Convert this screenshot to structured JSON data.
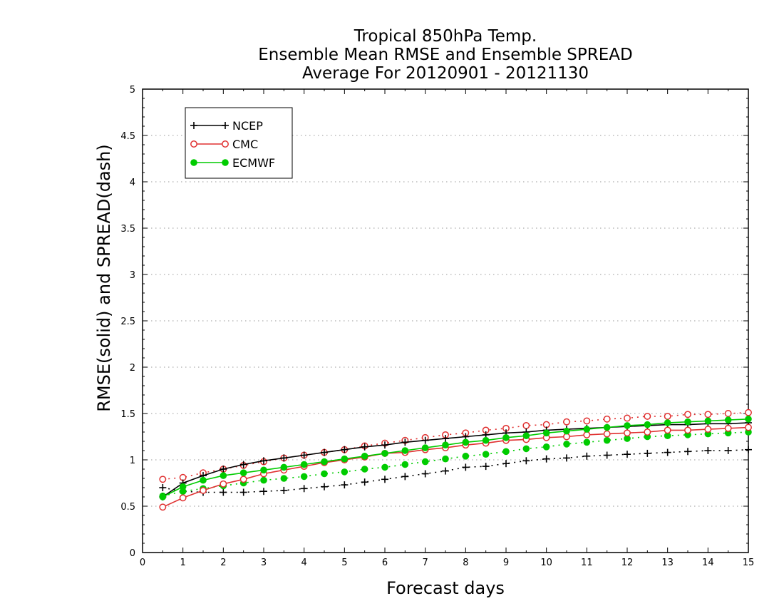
{
  "chart_data": {
    "type": "line",
    "title": [
      "Tropical 850hPa Temp.",
      "Ensemble Mean RMSE and Ensemble SPREAD",
      "Average For 20120901 - 20121130"
    ],
    "xlabel": "Forecast days",
    "ylabel": "RMSE(solid) and SPREAD(dash)",
    "xlim": [
      0,
      15
    ],
    "ylim": [
      0,
      5
    ],
    "xticks": [
      0,
      1,
      2,
      3,
      4,
      5,
      6,
      7,
      8,
      9,
      10,
      11,
      12,
      13,
      14,
      15
    ],
    "yticks": [
      0,
      0.5,
      1,
      1.5,
      2,
      2.5,
      3,
      3.5,
      4,
      4.5,
      5
    ],
    "ytick_labels": [
      "0",
      "0.5",
      "1",
      "1.5",
      "2",
      "2.5",
      "3",
      "3.5",
      "4",
      "4.5",
      "5"
    ],
    "grid": "horizontal dotted",
    "legend_position": "top-left",
    "x": [
      0.5,
      1,
      1.5,
      2,
      2.5,
      3,
      3.5,
      4,
      4.5,
      5,
      5.5,
      6,
      6.5,
      7,
      7.5,
      8,
      8.5,
      9,
      9.5,
      10,
      10.5,
      11,
      11.5,
      12,
      12.5,
      13,
      13.5,
      14,
      14.5,
      15
    ],
    "series": [
      {
        "name": "NCEP",
        "metric": "RMSE",
        "color": "#000000",
        "marker": "plus",
        "values": [
          0.6,
          0.75,
          0.83,
          0.9,
          0.95,
          0.99,
          1.02,
          1.05,
          1.08,
          1.11,
          1.14,
          1.16,
          1.19,
          1.21,
          1.23,
          1.25,
          1.27,
          1.29,
          1.3,
          1.32,
          1.33,
          1.34,
          1.35,
          1.36,
          1.37,
          1.38,
          1.38,
          1.39,
          1.39,
          1.4
        ]
      },
      {
        "name": "NCEP",
        "metric": "SPREAD",
        "color": "#000000",
        "marker": "plus",
        "values": [
          0.7,
          0.66,
          0.65,
          0.65,
          0.65,
          0.66,
          0.67,
          0.69,
          0.71,
          0.73,
          0.76,
          0.79,
          0.82,
          0.85,
          0.88,
          0.92,
          0.93,
          0.96,
          0.99,
          1.01,
          1.02,
          1.04,
          1.05,
          1.06,
          1.07,
          1.08,
          1.09,
          1.1,
          1.1,
          1.11
        ]
      },
      {
        "name": "CMC",
        "metric": "RMSE",
        "color": "#e03030",
        "marker": "circle-open",
        "values": [
          0.49,
          0.59,
          0.67,
          0.74,
          0.79,
          0.85,
          0.89,
          0.93,
          0.97,
          1.0,
          1.03,
          1.07,
          1.08,
          1.11,
          1.13,
          1.16,
          1.18,
          1.21,
          1.22,
          1.24,
          1.25,
          1.27,
          1.28,
          1.29,
          1.3,
          1.32,
          1.32,
          1.33,
          1.34,
          1.35
        ]
      },
      {
        "name": "CMC",
        "metric": "SPREAD",
        "color": "#e03030",
        "marker": "circle-open",
        "values": [
          0.79,
          0.81,
          0.86,
          0.9,
          0.94,
          0.98,
          1.02,
          1.05,
          1.08,
          1.11,
          1.15,
          1.18,
          1.21,
          1.24,
          1.27,
          1.29,
          1.32,
          1.34,
          1.37,
          1.38,
          1.41,
          1.42,
          1.44,
          1.45,
          1.47,
          1.47,
          1.49,
          1.49,
          1.5,
          1.51
        ]
      },
      {
        "name": "ECMWF",
        "metric": "RMSE",
        "color": "#00cc00",
        "marker": "circle-filled",
        "values": [
          0.6,
          0.71,
          0.78,
          0.83,
          0.86,
          0.89,
          0.92,
          0.95,
          0.98,
          1.01,
          1.04,
          1.07,
          1.1,
          1.13,
          1.16,
          1.19,
          1.21,
          1.24,
          1.26,
          1.29,
          1.31,
          1.33,
          1.35,
          1.37,
          1.38,
          1.4,
          1.41,
          1.42,
          1.43,
          1.44
        ]
      },
      {
        "name": "ECMWF",
        "metric": "SPREAD",
        "color": "#00cc00",
        "marker": "circle-filled",
        "values": [
          0.61,
          0.66,
          0.69,
          0.72,
          0.75,
          0.78,
          0.8,
          0.82,
          0.85,
          0.87,
          0.9,
          0.92,
          0.95,
          0.98,
          1.01,
          1.04,
          1.06,
          1.09,
          1.12,
          1.14,
          1.17,
          1.19,
          1.21,
          1.23,
          1.25,
          1.26,
          1.27,
          1.28,
          1.29,
          1.3
        ]
      }
    ],
    "legend": [
      {
        "label": "NCEP",
        "color": "#000000",
        "marker": "plus"
      },
      {
        "label": "CMC",
        "color": "#e03030",
        "marker": "circle-open"
      },
      {
        "label": "ECMWF",
        "color": "#00cc00",
        "marker": "circle-filled"
      }
    ]
  }
}
